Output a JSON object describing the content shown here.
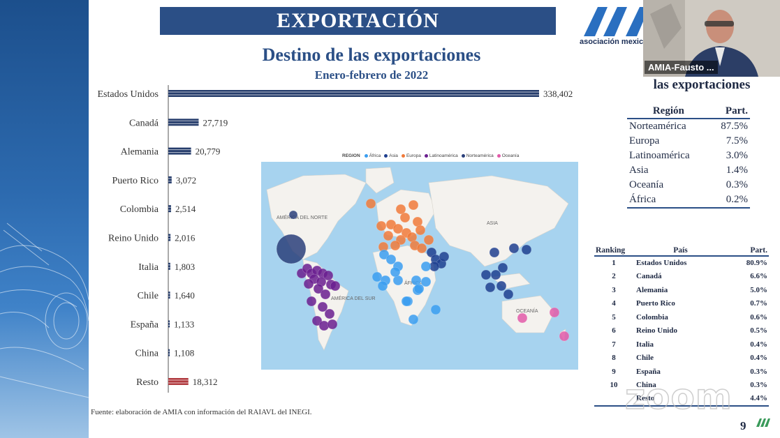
{
  "slide": {
    "header": "EXPORTACIÓN",
    "title": "Destino de las exportaciones",
    "subtitle": "Enero-febrero de 2022",
    "source": "Fuente: elaboración de AMIA con información del RAIAVL del INEGI.",
    "page_number": "9",
    "logo_text": "asociación mexic"
  },
  "video": {
    "participant_name": "AMIA-Fausto ..."
  },
  "region_section": {
    "title": "las exportaciones",
    "headers": [
      "Región",
      "Part."
    ],
    "rows": [
      {
        "region": "Norteamérica",
        "part": "87.5%"
      },
      {
        "region": "Europa",
        "part": "7.5%"
      },
      {
        "region": "Latinoamérica",
        "part": "3.0%"
      },
      {
        "region": "Asia",
        "part": "1.4%"
      },
      {
        "region": "Oceanía",
        "part": "0.3%"
      },
      {
        "region": "África",
        "part": "0.2%"
      }
    ]
  },
  "ranking_section": {
    "headers": [
      "Ranking",
      "País",
      "Part."
    ],
    "rows": [
      {
        "rank": "1",
        "country": "Estados Unidos",
        "part": "80.9%"
      },
      {
        "rank": "2",
        "country": "Canadá",
        "part": "6.6%"
      },
      {
        "rank": "3",
        "country": "Alemania",
        "part": "5.0%"
      },
      {
        "rank": "4",
        "country": "Puerto Rico",
        "part": "0.7%"
      },
      {
        "rank": "5",
        "country": "Colombia",
        "part": "0.6%"
      },
      {
        "rank": "6",
        "country": "Reino Unido",
        "part": "0.5%"
      },
      {
        "rank": "7",
        "country": "Italia",
        "part": "0.4%"
      },
      {
        "rank": "8",
        "country": "Chile",
        "part": "0.4%"
      },
      {
        "rank": "9",
        "country": "España",
        "part": "0.3%"
      },
      {
        "rank": "10",
        "country": "China",
        "part": "0.3%"
      },
      {
        "rank": "",
        "country": "Resto",
        "part": "4.4%"
      }
    ]
  },
  "map": {
    "legend_title": "REGION",
    "legend": [
      {
        "name": "África",
        "color": "#3a9ef0"
      },
      {
        "name": "Asia",
        "color": "#1e3f8f"
      },
      {
        "name": "Europa",
        "color": "#f07a3a"
      },
      {
        "name": "Latinoamérica",
        "color": "#6a1f8f"
      },
      {
        "name": "Norteamérica",
        "color": "#2a3f7a"
      },
      {
        "name": "Oceanía",
        "color": "#e25aa8"
      }
    ],
    "labels": [
      "AMÉRICA DEL NORTE",
      "ASIA",
      "ÁFRICA",
      "AMÉRICA DEL SUR",
      "OCEANÍA"
    ]
  },
  "watermark": "zoom",
  "colors": {
    "bar_main": "#253c6b",
    "bar_rest": "#b03a3f",
    "header_bg": "#2b4f86",
    "accent": "#2b4f86"
  },
  "chart_data": {
    "type": "bar",
    "orientation": "horizontal",
    "categories": [
      "Estados Unidos",
      "Canadá",
      "Alemania",
      "Puerto Rico",
      "Colombia",
      "Reino Unido",
      "Italia",
      "Chile",
      "España",
      "China",
      "Resto"
    ],
    "values": [
      338402,
      27719,
      20779,
      3072,
      2514,
      2016,
      1803,
      1640,
      1133,
      1108,
      18312
    ],
    "value_labels": [
      "338,402",
      "27,719",
      "20,779",
      "3,072",
      "2,514",
      "2,016",
      "1,803",
      "1,640",
      "1,133",
      "1,108",
      "18,312"
    ],
    "highlight_category": "Resto",
    "title": "Destino de las exportaciones",
    "subtitle": "Enero-febrero de 2022",
    "grid": false
  }
}
